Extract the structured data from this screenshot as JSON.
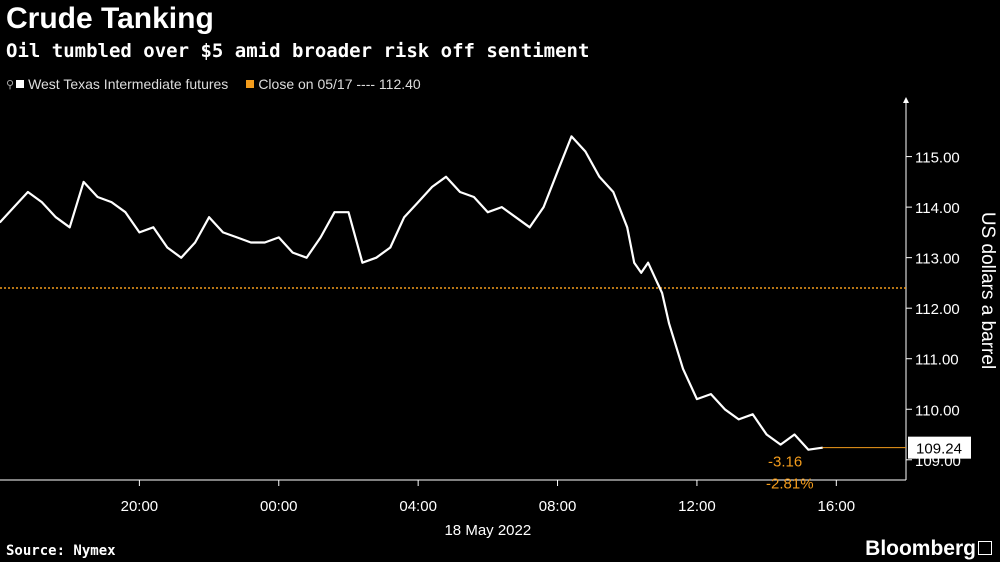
{
  "header": {
    "title": "Crude Tanking",
    "subtitle": "Oil tumbled over $5 amid broader risk off sentiment"
  },
  "footer": {
    "source": "Source: Nymex",
    "brand": "Bloomberg"
  },
  "colors": {
    "series": "#ffffff",
    "close_line": "#f39c1c",
    "background": "#000000"
  },
  "chart_data": {
    "type": "line",
    "ylabel": "US dollars a barrel",
    "ylim": [
      108.6,
      116.1
    ],
    "y_ticks": [
      "115.00",
      "114.00",
      "113.00",
      "112.00",
      "111.00",
      "110.00",
      "109.00"
    ],
    "y_tick_values": [
      115,
      114,
      113,
      112,
      111,
      110,
      109
    ],
    "x_range_hours": [
      16.0,
      42.0
    ],
    "x_ticks": [
      {
        "label": "20:00",
        "hour": 20
      },
      {
        "label": "00:00",
        "hour": 24
      },
      {
        "label": "04:00",
        "hour": 28
      },
      {
        "label": "08:00",
        "hour": 32
      },
      {
        "label": "12:00",
        "hour": 36
      },
      {
        "label": "16:00",
        "hour": 40
      }
    ],
    "date_label": "18 May 2022",
    "legend": [
      {
        "name": "West Texas Intermediate futures",
        "color": "#ffffff"
      },
      {
        "name": "Close on 05/17 ---- 112.40",
        "color": "#f39c1c"
      }
    ],
    "reference_line": {
      "value": 112.4
    },
    "last_value": {
      "label": "109.24",
      "value": 109.24
    },
    "change_labels": [
      "-3.16",
      "-2.81%"
    ],
    "series": [
      {
        "name": "West Texas Intermediate futures",
        "x": [
          16.0,
          16.4,
          16.8,
          17.2,
          17.6,
          18.0,
          18.4,
          18.8,
          19.2,
          19.6,
          20.0,
          20.4,
          20.8,
          21.2,
          21.6,
          22.0,
          22.4,
          22.8,
          23.2,
          23.6,
          24.0,
          24.4,
          24.8,
          25.2,
          25.6,
          26.0,
          26.4,
          26.8,
          27.2,
          27.6,
          28.0,
          28.4,
          28.8,
          29.2,
          29.6,
          30.0,
          30.4,
          30.8,
          31.2,
          31.6,
          32.0,
          32.4,
          32.8,
          33.2,
          33.6,
          34.0,
          34.2,
          34.4,
          34.6,
          34.8,
          35.0,
          35.2,
          35.6,
          36.0,
          36.4,
          36.8,
          37.2,
          37.6,
          38.0,
          38.4,
          38.8,
          39.2,
          39.6
        ],
        "values": [
          113.7,
          114.0,
          114.3,
          114.1,
          113.8,
          113.6,
          114.5,
          114.2,
          114.1,
          113.9,
          113.5,
          113.6,
          113.2,
          113.0,
          113.3,
          113.8,
          113.5,
          113.4,
          113.3,
          113.3,
          113.4,
          113.1,
          113.0,
          113.4,
          113.9,
          113.9,
          112.9,
          113.0,
          113.2,
          113.8,
          114.1,
          114.4,
          114.6,
          114.3,
          114.2,
          113.9,
          114.0,
          113.8,
          113.6,
          114.0,
          114.7,
          115.4,
          115.1,
          114.6,
          114.3,
          113.6,
          112.9,
          112.7,
          112.9,
          112.6,
          112.3,
          111.7,
          110.8,
          110.2,
          110.3,
          110.0,
          109.8,
          109.9,
          109.5,
          109.3,
          109.5,
          109.2,
          109.24
        ]
      }
    ]
  }
}
